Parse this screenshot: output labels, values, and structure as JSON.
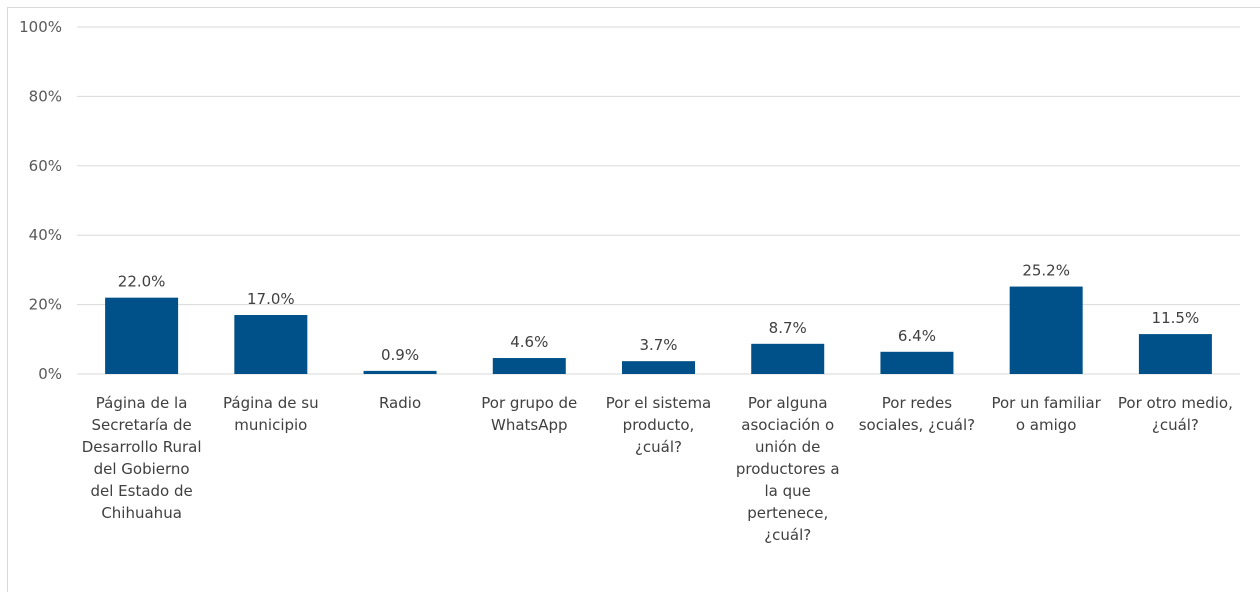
{
  "chart_data": {
    "type": "bar",
    "title": "",
    "xlabel": "",
    "ylabel": "",
    "ylim": [
      0,
      100
    ],
    "yticks": [
      0,
      20,
      40,
      60,
      80,
      100
    ],
    "ytick_labels": [
      "0%",
      "20%",
      "40%",
      "60%",
      "80%",
      "100%"
    ],
    "grid": true,
    "bar_color": "#00518a",
    "categories": [
      "Página de la Secretaría de Desarrollo Rural del Gobierno del Estado de Chihuahua",
      "Página de su municipio",
      "Radio",
      "Por grupo de WhatsApp",
      "Por el sistema producto, ¿cuál?",
      "Por alguna asociación o unión de productores a la que pertenece, ¿cuál?",
      "Por redes sociales, ¿cuál?",
      "Por un familiar o amigo",
      "Por otro medio, ¿cuál?"
    ],
    "category_lines": [
      [
        "Página de la",
        "Secretaría de",
        "Desarrollo Rural",
        "del Gobierno",
        "del Estado de",
        "Chihuahua"
      ],
      [
        "Página de su",
        "municipio"
      ],
      [
        "Radio"
      ],
      [
        "Por grupo de",
        "WhatsApp"
      ],
      [
        "Por el sistema",
        "producto,",
        "¿cuál?"
      ],
      [
        "Por alguna",
        "asociación o",
        "unión de",
        "productores a",
        "la que",
        "pertenece,",
        "¿cuál?"
      ],
      [
        "Por redes",
        "sociales, ¿cuál?"
      ],
      [
        "Por un familiar",
        "o amigo"
      ],
      [
        "Por otro medio,",
        "¿cuál?"
      ]
    ],
    "values": [
      22.0,
      17.0,
      0.9,
      4.6,
      3.7,
      8.7,
      6.4,
      25.2,
      11.5
    ],
    "data_labels": [
      "22.0%",
      "17.0%",
      "0.9%",
      "4.6%",
      "3.7%",
      "8.7%",
      "6.4%",
      "25.2%",
      "11.5%"
    ]
  }
}
